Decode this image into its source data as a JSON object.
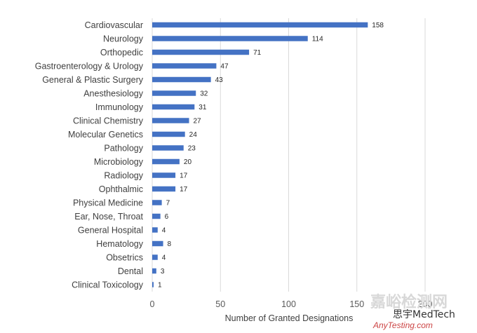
{
  "chart_data": {
    "type": "bar",
    "orientation": "horizontal",
    "categories": [
      "Cardiovascular",
      "Neurology",
      "Orthopedic",
      "Gastroenterology & Urology",
      "General & Plastic Surgery",
      "Anesthesiology",
      "Immunology",
      "Clinical Chemistry",
      "Molecular Genetics",
      "Pathology",
      "Microbiology",
      "Radiology",
      "Ophthalmic",
      "Physical Medicine",
      "Ear, Nose, Throat",
      "General Hospital",
      "Hematology",
      "Obsetrics",
      "Dental",
      "Clinical Toxicology"
    ],
    "values": [
      158,
      114,
      71,
      47,
      43,
      32,
      31,
      27,
      24,
      23,
      20,
      17,
      17,
      7,
      6,
      4,
      8,
      4,
      3,
      1
    ],
    "xlabel": "Number of Granted Designations",
    "ylabel": "",
    "xlim": [
      0,
      200
    ],
    "xticks": [
      "0",
      "50",
      "100",
      "150",
      "200"
    ],
    "grid": "vertical",
    "bar_color": "#4472C4"
  },
  "watermark": {
    "chinese": "嘉峪检测网",
    "english": "AnyTesting.com",
    "brand": "思宇MedTech"
  }
}
